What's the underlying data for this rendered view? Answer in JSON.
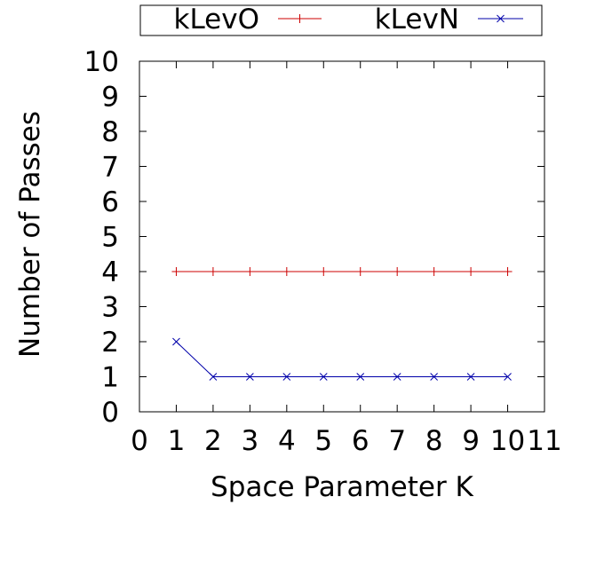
{
  "chart_data": {
    "type": "line",
    "title": "",
    "xlabel": "Space Parameter K",
    "ylabel": "Number of Passes",
    "xlim": [
      0,
      11
    ],
    "ylim": [
      0,
      10
    ],
    "xticks": [
      "0",
      "1",
      "2",
      "3",
      "4",
      "5",
      "6",
      "7",
      "8",
      "9",
      "10",
      "11"
    ],
    "yticks": [
      "0",
      "1",
      "2",
      "3",
      "4",
      "5",
      "6",
      "7",
      "8",
      "9",
      "10"
    ],
    "grid": false,
    "legend_position": "top-outside",
    "x": [
      1,
      2,
      3,
      4,
      5,
      6,
      7,
      8,
      9,
      10
    ],
    "series": [
      {
        "name": "kLevO",
        "color": "#cc0000",
        "marker": "plus",
        "values": [
          4,
          4,
          4,
          4,
          4,
          4,
          4,
          4,
          4,
          4
        ]
      },
      {
        "name": "kLevN",
        "color": "#0000aa",
        "marker": "cross",
        "values": [
          2,
          1,
          1,
          1,
          1,
          1,
          1,
          1,
          1,
          1
        ]
      }
    ]
  }
}
